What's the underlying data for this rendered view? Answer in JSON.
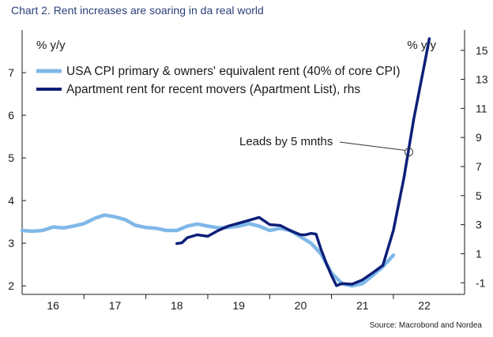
{
  "title": "Chart 2. Rent increases are soaring in da real world",
  "source": "Source: Macrobond and Nordea",
  "chart_data": {
    "type": "line",
    "left_unit": "% y/y",
    "right_unit": "% y/y",
    "y_left": {
      "lim": [
        1.8,
        8.0
      ],
      "ticks": [
        2,
        3,
        4,
        5,
        6,
        7
      ]
    },
    "y_right": {
      "lim": [
        -1.8,
        16.4
      ],
      "ticks": [
        -1,
        1,
        3,
        5,
        7,
        9,
        11,
        13,
        15
      ]
    },
    "x": {
      "lim": [
        2015.5,
        2022.65
      ],
      "ticks": [
        "16",
        "17",
        "18",
        "19",
        "20",
        "21",
        "22"
      ],
      "tick_positions": [
        2016,
        2017,
        2018,
        2019,
        2020,
        2021,
        2022
      ]
    },
    "grid": false,
    "legend_position": "top-left",
    "series": [
      {
        "name": "USA CPI primary & owners' equivalent rent (40% of core CPI)",
        "axis": "left",
        "color": "#7fb8e8",
        "points": [
          [
            2015.5,
            3.3
          ],
          [
            2015.67,
            3.28
          ],
          [
            2015.83,
            3.3
          ],
          [
            2016.0,
            3.38
          ],
          [
            2016.17,
            3.36
          ],
          [
            2016.33,
            3.4
          ],
          [
            2016.5,
            3.46
          ],
          [
            2016.67,
            3.58
          ],
          [
            2016.83,
            3.66
          ],
          [
            2017.0,
            3.62
          ],
          [
            2017.17,
            3.55
          ],
          [
            2017.33,
            3.42
          ],
          [
            2017.5,
            3.37
          ],
          [
            2017.67,
            3.35
          ],
          [
            2017.83,
            3.3
          ],
          [
            2018.0,
            3.3
          ],
          [
            2018.17,
            3.4
          ],
          [
            2018.33,
            3.45
          ],
          [
            2018.5,
            3.4
          ],
          [
            2018.67,
            3.36
          ],
          [
            2018.83,
            3.37
          ],
          [
            2019.0,
            3.4
          ],
          [
            2019.17,
            3.46
          ],
          [
            2019.33,
            3.4
          ],
          [
            2019.5,
            3.3
          ],
          [
            2019.67,
            3.35
          ],
          [
            2019.83,
            3.3
          ],
          [
            2020.0,
            3.15
          ],
          [
            2020.17,
            3.0
          ],
          [
            2020.33,
            2.75
          ],
          [
            2020.5,
            2.3
          ],
          [
            2020.67,
            2.05
          ],
          [
            2020.83,
            2.0
          ],
          [
            2021.0,
            2.05
          ],
          [
            2021.17,
            2.25
          ],
          [
            2021.33,
            2.45
          ],
          [
            2021.5,
            2.72
          ]
        ]
      },
      {
        "name": "Apartment rent for recent movers (Apartment List), rhs",
        "axis": "right",
        "color": "#0e1f78",
        "points": [
          [
            2018.0,
            1.7
          ],
          [
            2018.08,
            1.75
          ],
          [
            2018.17,
            2.1
          ],
          [
            2018.33,
            2.3
          ],
          [
            2018.5,
            2.2
          ],
          [
            2018.67,
            2.6
          ],
          [
            2018.83,
            2.9
          ],
          [
            2019.0,
            3.1
          ],
          [
            2019.17,
            3.3
          ],
          [
            2019.33,
            3.5
          ],
          [
            2019.5,
            3.0
          ],
          [
            2019.67,
            2.95
          ],
          [
            2019.83,
            2.6
          ],
          [
            2020.0,
            2.3
          ],
          [
            2020.08,
            2.3
          ],
          [
            2020.17,
            2.4
          ],
          [
            2020.25,
            2.35
          ],
          [
            2020.33,
            1.3
          ],
          [
            2020.42,
            0.3
          ],
          [
            2020.5,
            -0.5
          ],
          [
            2020.58,
            -1.2
          ],
          [
            2020.67,
            -1.05
          ],
          [
            2020.83,
            -1.1
          ],
          [
            2021.0,
            -0.8
          ],
          [
            2021.17,
            -0.3
          ],
          [
            2021.33,
            0.2
          ],
          [
            2021.5,
            2.6
          ],
          [
            2021.67,
            6.2
          ],
          [
            2021.83,
            10.3
          ],
          [
            2022.0,
            14.0
          ],
          [
            2022.08,
            15.8
          ]
        ]
      }
    ],
    "annotation": {
      "text": "Leads by 5 mnths",
      "target_x": 2021.75,
      "target_value_rhs": 8.0
    }
  }
}
